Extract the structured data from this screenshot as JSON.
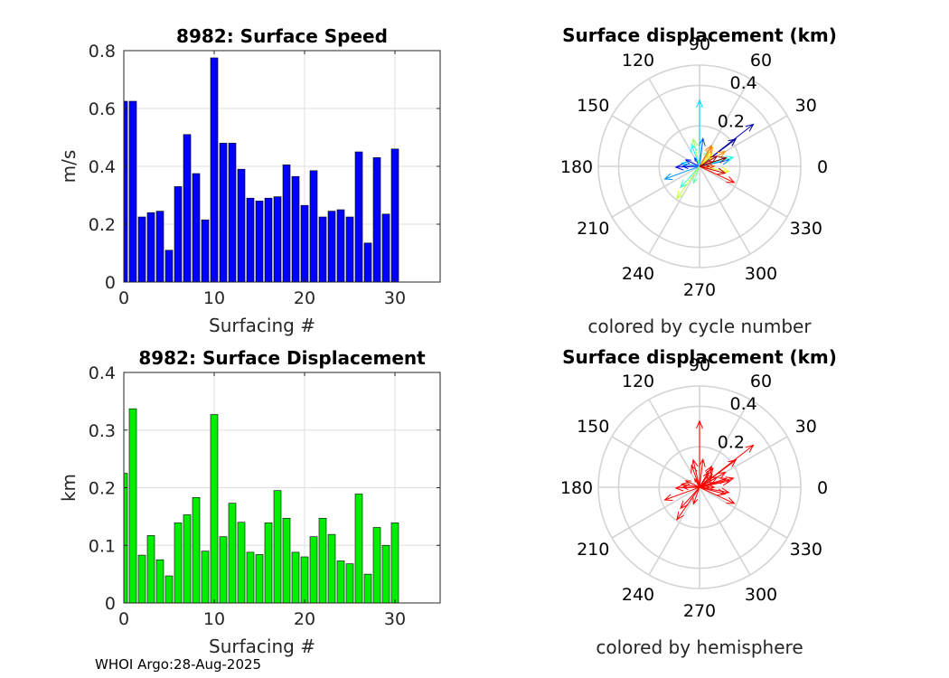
{
  "footer": "WHOI Argo:28-Aug-2025",
  "chart_data": [
    {
      "id": "speed",
      "type": "bar",
      "title": "8982: Surface Speed",
      "xlabel": "Surfacing #",
      "ylabel": "m/s",
      "xlim": [
        0,
        35
      ],
      "ylim": [
        0,
        0.8
      ],
      "xticks": [
        0,
        10,
        20,
        30
      ],
      "yticks": [
        0,
        0.2,
        0.4,
        0.6,
        0.8
      ],
      "bar_color": "#0000ff",
      "x": [
        0,
        1,
        2,
        3,
        4,
        5,
        6,
        7,
        8,
        9,
        10,
        11,
        12,
        13,
        14,
        15,
        16,
        17,
        18,
        19,
        20,
        21,
        22,
        23,
        24,
        25,
        26,
        27,
        28,
        29,
        30
      ],
      "values": [
        0.625,
        0.625,
        0.225,
        0.24,
        0.245,
        0.11,
        0.33,
        0.51,
        0.375,
        0.215,
        0.775,
        0.48,
        0.48,
        0.39,
        0.29,
        0.28,
        0.29,
        0.295,
        0.405,
        0.365,
        0.265,
        0.385,
        0.225,
        0.245,
        0.25,
        0.225,
        0.45,
        0.135,
        0.43,
        0.235,
        0.46
      ]
    },
    {
      "id": "displacement",
      "type": "bar",
      "title": "8982: Surface Displacement",
      "xlabel": "Surfacing #",
      "ylabel": "km",
      "xlim": [
        0,
        35
      ],
      "ylim": [
        0,
        0.4
      ],
      "xticks": [
        0,
        10,
        20,
        30
      ],
      "yticks": [
        0,
        0.1,
        0.2,
        0.3,
        0.4
      ],
      "bar_color": "#00ee00",
      "x": [
        0,
        1,
        2,
        3,
        4,
        5,
        6,
        7,
        8,
        9,
        10,
        11,
        12,
        13,
        14,
        15,
        16,
        17,
        18,
        19,
        20,
        21,
        22,
        23,
        24,
        25,
        26,
        27,
        28,
        29,
        30
      ],
      "values": [
        0.225,
        0.337,
        0.083,
        0.117,
        0.075,
        0.047,
        0.139,
        0.153,
        0.183,
        0.09,
        0.327,
        0.115,
        0.173,
        0.14,
        0.088,
        0.084,
        0.139,
        0.195,
        0.147,
        0.088,
        0.08,
        0.115,
        0.147,
        0.119,
        0.073,
        0.068,
        0.189,
        0.05,
        0.131,
        0.1,
        0.139
      ]
    },
    {
      "id": "polar-cycle",
      "type": "polar-vectors",
      "title": "Surface displacement (km)",
      "caption": "colored by cycle number",
      "color_mode": "cycle",
      "rmax": 0.5,
      "rticks": [
        0.2,
        0.4
      ],
      "angle_ticks": [
        0,
        30,
        60,
        90,
        120,
        150,
        180,
        210,
        240,
        270,
        300,
        330
      ],
      "colormap": [
        "#00008f",
        "#0000ff",
        "#0080ff",
        "#00ffff",
        "#80ff80",
        "#ffff00",
        "#ff8000",
        "#ff0000",
        "#800000"
      ],
      "vectors": [
        {
          "cycle": 0,
          "r": 0.225,
          "angle": 37
        },
        {
          "cycle": 1,
          "r": 0.337,
          "angle": 38
        },
        {
          "cycle": 2,
          "r": 0.083,
          "angle": 180
        },
        {
          "cycle": 3,
          "r": 0.117,
          "angle": 182
        },
        {
          "cycle": 4,
          "r": 0.075,
          "angle": 155
        },
        {
          "cycle": 5,
          "r": 0.047,
          "angle": 120
        },
        {
          "cycle": 6,
          "r": 0.139,
          "angle": 83
        },
        {
          "cycle": 7,
          "r": 0.153,
          "angle": 12
        },
        {
          "cycle": 8,
          "r": 0.183,
          "angle": 200
        },
        {
          "cycle": 9,
          "r": 0.09,
          "angle": 170
        },
        {
          "cycle": 10,
          "r": 0.327,
          "angle": 90
        },
        {
          "cycle": 11,
          "r": 0.115,
          "angle": 110
        },
        {
          "cycle": 12,
          "r": 0.173,
          "angle": 15
        },
        {
          "cycle": 13,
          "r": 0.14,
          "angle": 228
        },
        {
          "cycle": 14,
          "r": 0.088,
          "angle": 250
        },
        {
          "cycle": 15,
          "r": 0.084,
          "angle": 60
        },
        {
          "cycle": 16,
          "r": 0.139,
          "angle": 103
        },
        {
          "cycle": 17,
          "r": 0.195,
          "angle": 235
        },
        {
          "cycle": 18,
          "r": 0.147,
          "angle": 350
        },
        {
          "cycle": 19,
          "r": 0.088,
          "angle": 45
        },
        {
          "cycle": 20,
          "r": 0.08,
          "angle": 40
        },
        {
          "cycle": 21,
          "r": 0.115,
          "angle": 55
        },
        {
          "cycle": 22,
          "r": 0.147,
          "angle": 30
        },
        {
          "cycle": 23,
          "r": 0.119,
          "angle": 60
        },
        {
          "cycle": 24,
          "r": 0.073,
          "angle": 0
        },
        {
          "cycle": 25,
          "r": 0.068,
          "angle": 20
        },
        {
          "cycle": 26,
          "r": 0.189,
          "angle": 335
        },
        {
          "cycle": 27,
          "r": 0.05,
          "angle": 0
        },
        {
          "cycle": 28,
          "r": 0.131,
          "angle": 345
        },
        {
          "cycle": 29,
          "r": 0.1,
          "angle": 30
        },
        {
          "cycle": 30,
          "r": 0.139,
          "angle": 18
        }
      ]
    },
    {
      "id": "polar-hemisphere",
      "type": "polar-vectors",
      "title": "Surface displacement (km)",
      "caption": "colored by hemisphere",
      "color_mode": "single",
      "vector_color": "#ff0000",
      "rmax": 0.5,
      "rticks": [
        0.2,
        0.4
      ],
      "angle_ticks": [
        0,
        30,
        60,
        90,
        120,
        150,
        180,
        210,
        240,
        270,
        300,
        330
      ],
      "same_vectors_as": "polar-cycle"
    }
  ]
}
